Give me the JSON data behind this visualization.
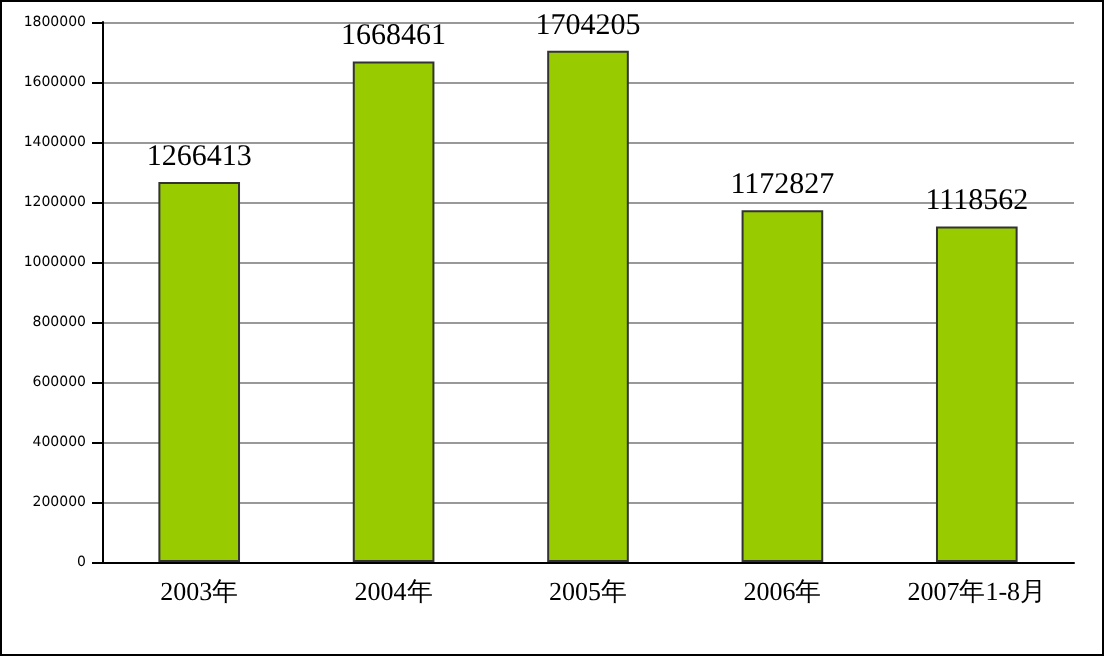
{
  "chart_data": {
    "type": "bar",
    "categories": [
      "2003年",
      "2004年",
      "2005年",
      "2006年",
      "2007年1-8月"
    ],
    "values": [
      1266413,
      1668461,
      1704205,
      1172827,
      1118562
    ],
    "color": "#99cc00",
    "ylim": [
      0,
      1800000
    ],
    "yticks": [
      0,
      200000,
      400000,
      600000,
      800000,
      1000000,
      1200000,
      1400000,
      1600000,
      1800000
    ],
    "grid": "y",
    "data_labels": true
  }
}
